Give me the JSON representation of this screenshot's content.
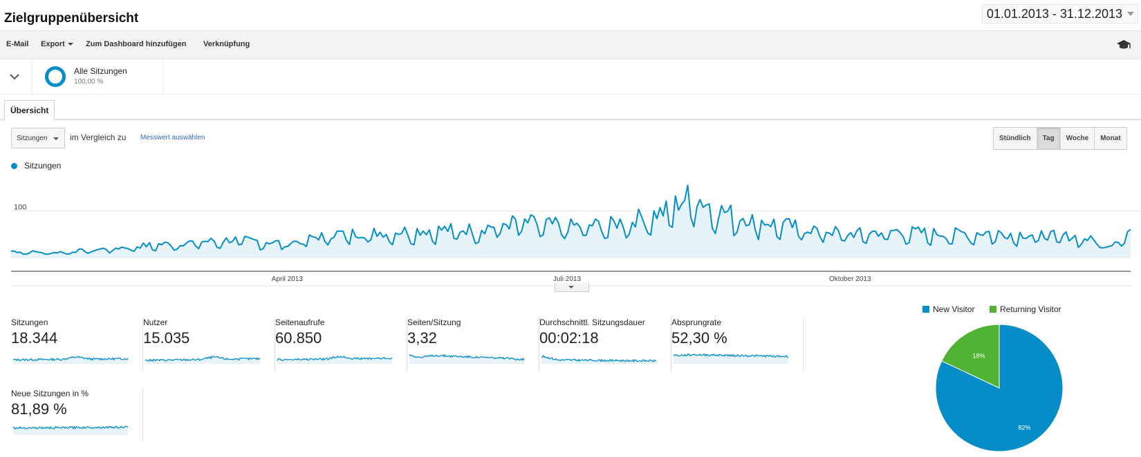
{
  "header": {
    "title": "Zielgruppenübersicht",
    "date_range": "01.01.2013 - 31.12.2013"
  },
  "toolbar": {
    "email": "E-Mail",
    "export": "Export",
    "dashboard": "Zum Dashboard hinzufügen",
    "shortcut": "Verknüpfung"
  },
  "segment": {
    "name": "Alle Sitzungen",
    "percent": "100,00 %"
  },
  "tabs": [
    {
      "label": "Übersicht",
      "active": true
    }
  ],
  "controls": {
    "metric_select": "Sitzungen",
    "compare_text": "im Vergleich zu",
    "compare_link": "Messwert auswählen",
    "granularity": [
      {
        "label": "Stündlich",
        "active": false
      },
      {
        "label": "Tag",
        "active": true
      },
      {
        "label": "Woche",
        "active": false
      },
      {
        "label": "Monat",
        "active": false
      }
    ]
  },
  "colors": {
    "series": "#058dc7",
    "area": "#e6f4fa",
    "returning": "#50b432"
  },
  "chart_data": [
    {
      "type": "area",
      "title": "",
      "series": [
        {
          "name": "Sitzungen"
        }
      ],
      "y_ticks": [
        "200",
        "100"
      ],
      "ylim": [
        0,
        200
      ],
      "x_tick_labels": [
        "April 2013",
        "Juli 2013",
        "Oktober 2013"
      ],
      "x_range": [
        "2013-01-01",
        "2013-12-31"
      ],
      "key_points": [
        [
          "2013-01-01",
          15
        ],
        [
          "2013-01-15",
          12
        ],
        [
          "2013-02-01",
          20
        ],
        [
          "2013-02-15",
          28
        ],
        [
          "2013-03-01",
          34
        ],
        [
          "2013-03-15",
          40
        ],
        [
          "2013-04-01",
          32
        ],
        [
          "2013-04-15",
          52
        ],
        [
          "2013-05-01",
          55
        ],
        [
          "2013-05-15",
          60
        ],
        [
          "2013-06-01",
          62
        ],
        [
          "2013-06-15",
          78
        ],
        [
          "2013-07-01",
          68
        ],
        [
          "2013-07-15",
          72
        ],
        [
          "2013-08-01",
          98
        ],
        [
          "2013-08-10",
          135
        ],
        [
          "2013-08-20",
          100
        ],
        [
          "2013-09-01",
          80
        ],
        [
          "2013-09-15",
          65
        ],
        [
          "2013-10-01",
          52
        ],
        [
          "2013-10-15",
          58
        ],
        [
          "2013-11-01",
          52
        ],
        [
          "2013-11-15",
          55
        ],
        [
          "2013-12-01",
          50
        ],
        [
          "2013-12-15",
          45
        ],
        [
          "2013-12-24",
          28
        ],
        [
          "2013-12-31",
          60
        ]
      ],
      "grid": true,
      "legend": "top-left"
    },
    {
      "type": "pie",
      "title": "",
      "series": [
        {
          "name": "New Visitor",
          "value": 82
        },
        {
          "name": "Returning Visitor",
          "value": 18
        }
      ],
      "slice_labels": [
        "82%",
        "18%"
      ],
      "legend": "top"
    }
  ],
  "metrics": [
    {
      "name": "Sitzungen",
      "value": "18.344"
    },
    {
      "name": "Nutzer",
      "value": "15.035"
    },
    {
      "name": "Seitenaufrufe",
      "value": "60.850"
    },
    {
      "name": "Seiten/Sitzung",
      "value": "3,32"
    },
    {
      "name": "Durchschnittl. Sitzungsdauer",
      "value": "00:02:18"
    },
    {
      "name": "Absprungrate",
      "value": "52,30 %"
    },
    {
      "name": "Neue Sitzungen in %",
      "value": "81,89 %"
    }
  ]
}
